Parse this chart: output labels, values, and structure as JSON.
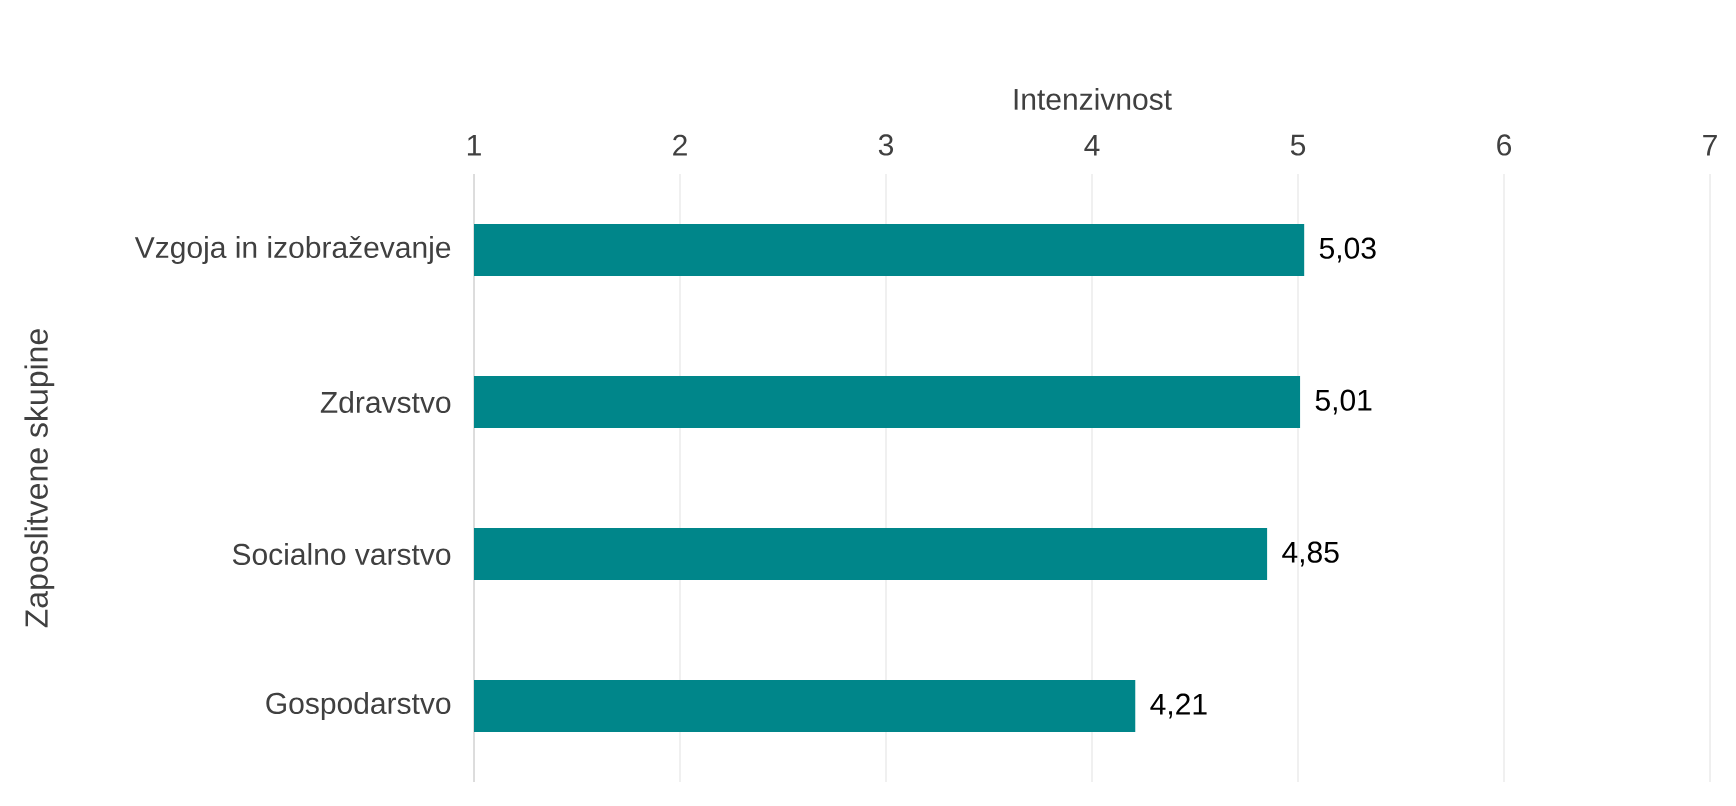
{
  "chart_data": {
    "type": "bar",
    "orientation": "horizontal",
    "xlabel": "Intenzivnost",
    "ylabel": "Zaposlitvene skupine",
    "categories": [
      "Vzgoja in izobraževanje",
      "Zdravstvo",
      "Socialno varstvo",
      "Gospodarstvo"
    ],
    "values": [
      5.03,
      5.01,
      4.85,
      4.21
    ],
    "value_labels": [
      "5,03",
      "5,01",
      "4,85",
      "4,21"
    ],
    "color": "#00868a",
    "xlim": [
      1,
      7
    ],
    "xticks": [
      1,
      2,
      3,
      4,
      5,
      6,
      7
    ],
    "grid": "x"
  }
}
